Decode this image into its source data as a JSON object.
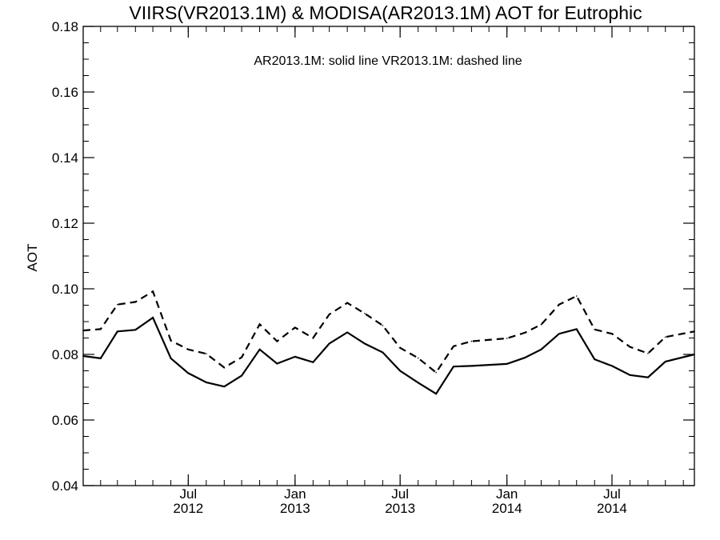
{
  "chart_data": {
    "type": "line",
    "title": "VIIRS(VR2013.1M) & MODISA(AR2013.1M)  AOT for Eutrophic",
    "annotation": "AR2013.1M: solid line   VR2013.1M: dashed line",
    "xlabel": "",
    "ylabel": "AOT",
    "ylim": [
      0.04,
      0.18
    ],
    "yticks": [
      "0.04",
      "0.06",
      "0.08",
      "0.10",
      "0.12",
      "0.14",
      "0.16",
      "0.18"
    ],
    "xticks": [
      {
        "x": "2012-07-01",
        "month": "Jul",
        "year": "2012"
      },
      {
        "x": "2013-01-01",
        "month": "Jan",
        "year": "2013"
      },
      {
        "x": "2013-07-01",
        "month": "Jul",
        "year": "2013"
      },
      {
        "x": "2014-01-01",
        "month": "Jan",
        "year": "2014"
      },
      {
        "x": "2014-07-01",
        "month": "Jul",
        "year": "2014"
      }
    ],
    "xlim": [
      "2012-01-02",
      "2014-11-20"
    ],
    "grid": false,
    "x": [
      "2012-01-02",
      "2012-02-01",
      "2012-03-01",
      "2012-04-01",
      "2012-05-01",
      "2012-06-01",
      "2012-07-01",
      "2012-08-01",
      "2012-09-01",
      "2012-10-01",
      "2012-11-01",
      "2012-12-01",
      "2013-01-01",
      "2013-02-01",
      "2013-03-01",
      "2013-04-01",
      "2013-05-01",
      "2013-06-01",
      "2013-07-01",
      "2013-08-01",
      "2013-09-01",
      "2013-10-01",
      "2013-11-01",
      "2014-01-01",
      "2014-02-01",
      "2014-03-01",
      "2014-04-01",
      "2014-05-01",
      "2014-06-01",
      "2014-07-01",
      "2014-08-01",
      "2014-09-01",
      "2014-10-01",
      "2014-11-20"
    ],
    "series": [
      {
        "name": "AR2013.1M",
        "style": "solid",
        "values": [
          0.0795,
          0.0788,
          0.087,
          0.0875,
          0.0912,
          0.0788,
          0.0743,
          0.0715,
          0.0702,
          0.0735,
          0.0815,
          0.0772,
          0.0793,
          0.0776,
          0.0833,
          0.0867,
          0.0833,
          0.0806,
          0.075,
          0.0714,
          0.068,
          0.0763,
          0.0765,
          0.0771,
          0.079,
          0.0815,
          0.0863,
          0.0877,
          0.0785,
          0.0765,
          0.0737,
          0.073,
          0.0778,
          0.08
        ]
      },
      {
        "name": "VR2013.1M",
        "style": "dashed",
        "values": [
          0.0873,
          0.0877,
          0.0952,
          0.096,
          0.0992,
          0.0842,
          0.0815,
          0.0802,
          0.076,
          0.0791,
          0.0892,
          0.084,
          0.0882,
          0.085,
          0.0922,
          0.0957,
          0.0925,
          0.0888,
          0.082,
          0.0789,
          0.0745,
          0.0825,
          0.084,
          0.0849,
          0.0866,
          0.0891,
          0.0952,
          0.0978,
          0.0876,
          0.0863,
          0.0823,
          0.0803,
          0.0853,
          0.087
        ]
      }
    ]
  }
}
